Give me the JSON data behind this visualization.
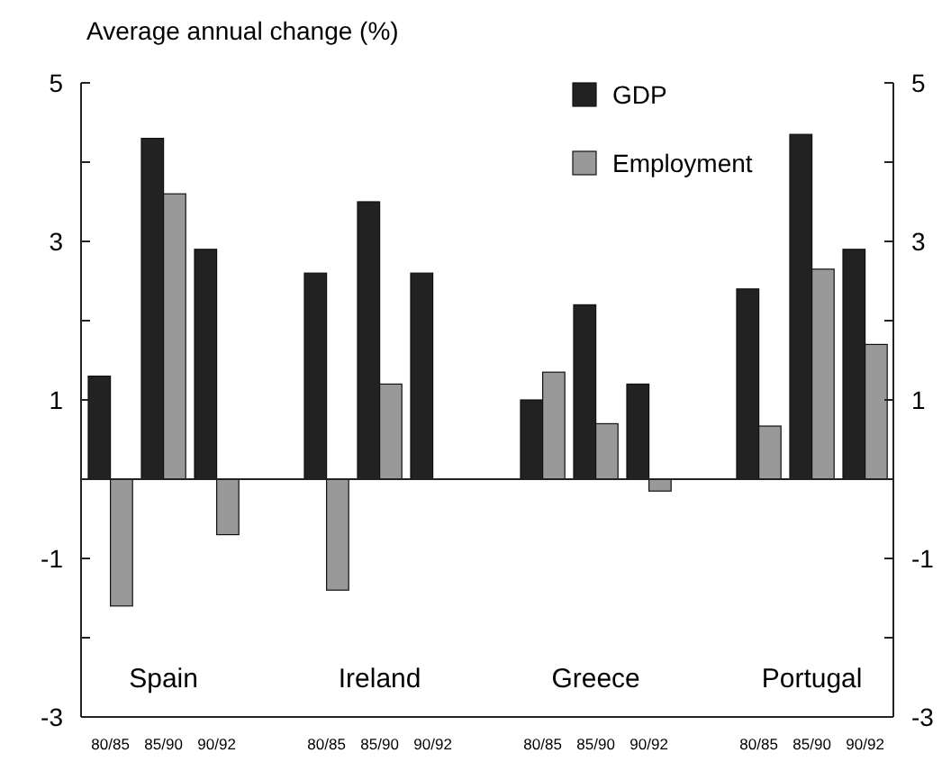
{
  "chart_data": {
    "type": "bar",
    "ylabel": "Average annual change (%)",
    "categories": [
      "80/85",
      "85/90",
      "90/92",
      "80/85",
      "85/90",
      "90/92",
      "80/85",
      "85/90",
      "90/92",
      "80/85",
      "85/90",
      "90/92"
    ],
    "series": [
      {
        "name": "GDP",
        "color": "#222222",
        "values": [
          1.3,
          4.3,
          2.9,
          2.6,
          3.5,
          2.6,
          1.0,
          2.2,
          1.2,
          2.4,
          4.35,
          2.9
        ]
      },
      {
        "name": "Employment",
        "color": "#999999",
        "values": [
          -1.6,
          3.6,
          -0.7,
          -1.4,
          1.2,
          0,
          1.35,
          0.7,
          -0.15,
          0.67,
          2.65,
          1.7
        ]
      }
    ],
    "ylim": [
      -3,
      5
    ],
    "yticks": [
      -3,
      {
        "value": -2,
        "label": null
      },
      -1,
      {
        "value": 0,
        "label": null
      },
      1,
      {
        "value": 2,
        "label": null
      },
      3,
      {
        "value": 4,
        "label": null
      },
      5
    ],
    "y2lim": [
      -3,
      5
    ],
    "y2ticks": [
      -3,
      {
        "value": -2,
        "label": null
      },
      -1,
      {
        "value": 0,
        "label": null
      },
      1,
      {
        "value": 2,
        "label": null
      },
      3,
      {
        "value": 4,
        "label": null
      },
      5
    ],
    "ref_lines": [
      {
        "axis": "y",
        "value": 0,
        "color": "#222222"
      }
    ],
    "annotations": [
      "Spain",
      "Ireland",
      "Greece",
      "Portugal"
    ],
    "legend": "top right"
  }
}
